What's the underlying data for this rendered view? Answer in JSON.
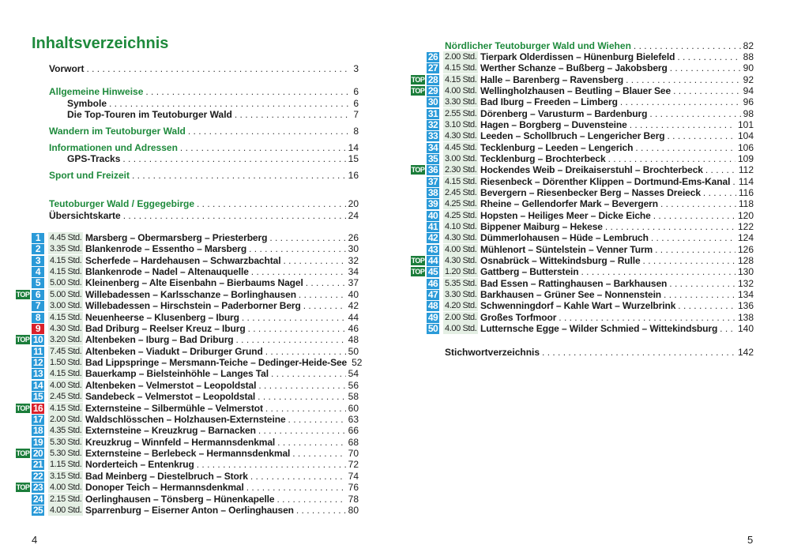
{
  "colors": {
    "accent_green": "#1e8a3c",
    "badge_blue": "#2a9ad8",
    "badge_red": "#d9202a",
    "top_green": "#1b7d3a",
    "duration_bg": "#e4efe4"
  },
  "left": {
    "title": "Inhaltsverzeichnis",
    "page_number": "4",
    "front_matter": [
      {
        "label": "Vorwort",
        "page": "3",
        "green": false,
        "indent": false
      },
      {
        "label": "Allgemeine Hinweise",
        "page": "6",
        "green": true,
        "indent": false
      },
      {
        "label": "Symbole",
        "page": "6",
        "green": false,
        "indent": true
      },
      {
        "label": "Die Top-Touren im Teutoburger Wald",
        "page": "7",
        "green": false,
        "indent": true
      },
      {
        "label": "Wandern im Teutoburger Wald",
        "page": "8",
        "green": true,
        "indent": false
      },
      {
        "label": "Informationen und Adressen",
        "page": "14",
        "green": true,
        "indent": false
      },
      {
        "label": "GPS-Tracks",
        "page": "15",
        "green": false,
        "indent": true
      },
      {
        "label": "Sport und Freizeit",
        "page": "16",
        "green": true,
        "indent": false
      },
      {
        "label": "Teutoburger Wald / Eggegebirge",
        "page": "20",
        "green": true,
        "indent": false
      },
      {
        "label": "Übersichtskarte",
        "page": "24",
        "green": false,
        "indent": false
      }
    ],
    "tours": [
      {
        "num": "1",
        "duration": "4.45 Std.",
        "title": "Marsberg – Obermarsberg – Priesterberg",
        "page": "26",
        "top": false,
        "red": false
      },
      {
        "num": "2",
        "duration": "3.35 Std.",
        "title": "Blankenrode – Essentho – Marsberg",
        "page": "30",
        "top": false,
        "red": false
      },
      {
        "num": "3",
        "duration": "4.15 Std.",
        "title": "Scherfede – Hardehausen – Schwarzbachtal",
        "page": "32",
        "top": false,
        "red": false
      },
      {
        "num": "4",
        "duration": "4.15 Std.",
        "title": "Blankenrode – Nadel – Altenauquelle",
        "page": "34",
        "top": false,
        "red": false
      },
      {
        "num": "5",
        "duration": "5.00 Std.",
        "title": "Kleinenberg – Alte Eisenbahn – Bierbaums Nagel",
        "page": "37",
        "top": false,
        "red": false
      },
      {
        "num": "6",
        "duration": "5.00 Std.",
        "title": "Willebadessen – Karlsschanze – Borlinghausen",
        "page": "40",
        "top": true,
        "red": false
      },
      {
        "num": "7",
        "duration": "3.00 Std.",
        "title": "Willebadessen – Hirschstein – Paderborner Berg",
        "page": "42",
        "top": false,
        "red": false
      },
      {
        "num": "8",
        "duration": "4.15 Std.",
        "title": "Neuenheerse – Klusenberg – Iburg",
        "page": "44",
        "top": false,
        "red": false
      },
      {
        "num": "9",
        "duration": "4.30 Std.",
        "title": "Bad Driburg – Reelser Kreuz – Iburg",
        "page": "46",
        "top": false,
        "red": true
      },
      {
        "num": "10",
        "duration": "3.20 Std.",
        "title": "Altenbeken – Iburg – Bad Driburg",
        "page": "48",
        "top": true,
        "red": false
      },
      {
        "num": "11",
        "duration": "7.45 Std.",
        "title": "Altenbeken – Viadukt – Driburger Grund",
        "page": "50",
        "top": false,
        "red": false
      },
      {
        "num": "12",
        "duration": "1.50 Std.",
        "title": "Bad Lippspringe – Mersmann-Teiche – Dedinger-Heide-See",
        "page": "52",
        "top": false,
        "red": false
      },
      {
        "num": "13",
        "duration": "4.15 Std.",
        "title": "Bauerkamp – Bielsteinhöhle – Langes Tal",
        "page": "54",
        "top": false,
        "red": false
      },
      {
        "num": "14",
        "duration": "4.00 Std.",
        "title": "Altenbeken – Velmerstot – Leopoldstal",
        "page": "56",
        "top": false,
        "red": false
      },
      {
        "num": "15",
        "duration": "2.45 Std.",
        "title": "Sandebeck – Velmerstot – Leopoldstal",
        "page": "58",
        "top": false,
        "red": false
      },
      {
        "num": "16",
        "duration": "4.15 Std.",
        "title": "Externsteine – Silbermühle – Velmerstot",
        "page": "60",
        "top": true,
        "red": true
      },
      {
        "num": "17",
        "duration": "2.00 Std.",
        "title": "Waldschlösschen – Holzhausen-Externsteine",
        "page": "63",
        "top": false,
        "red": false
      },
      {
        "num": "18",
        "duration": "4.35 Std.",
        "title": "Externsteine – Kreuzkrug – Barnacken",
        "page": "66",
        "top": false,
        "red": false
      },
      {
        "num": "19",
        "duration": "5.30 Std.",
        "title": "Kreuzkrug – Winnfeld – Hermannsdenkmal",
        "page": "68",
        "top": false,
        "red": false
      },
      {
        "num": "20",
        "duration": "5.30 Std.",
        "title": "Externsteine – Berlebeck – Hermannsdenkmal",
        "page": "70",
        "top": true,
        "red": false
      },
      {
        "num": "21",
        "duration": "1.15 Std.",
        "title": "Norderteich – Entenkrug",
        "page": "72",
        "top": false,
        "red": false
      },
      {
        "num": "22",
        "duration": "3.15 Std.",
        "title": "Bad Meinberg – Diestelbruch – Stork",
        "page": "74",
        "top": false,
        "red": false
      },
      {
        "num": "23",
        "duration": "4.00 Std.",
        "title": "Donoper Teich – Hermannsdenkmal",
        "page": "76",
        "top": true,
        "red": false
      },
      {
        "num": "24",
        "duration": "2.15 Std.",
        "title": "Oerlinghausen – Tönsberg – Hünenkapelle",
        "page": "78",
        "top": false,
        "red": false
      },
      {
        "num": "25",
        "duration": "4.00 Std.",
        "title": "Sparrenburg – Eiserner Anton – Oerlinghausen",
        "page": "80",
        "top": false,
        "red": false
      }
    ]
  },
  "right": {
    "page_number": "5",
    "section": {
      "label": "Nördlicher Teutoburger Wald und Wiehen",
      "page": "82"
    },
    "tours": [
      {
        "num": "26",
        "duration": "2.00 Std.",
        "title": "Tierpark Olderdissen – Hünenburg Bielefeld",
        "page": "88",
        "top": false,
        "red": false
      },
      {
        "num": "27",
        "duration": "4.15 Std.",
        "title": "Werther Schanze – Bußberg – Jakobsberg",
        "page": "90",
        "top": false,
        "red": false
      },
      {
        "num": "28",
        "duration": "4.15 Std.",
        "title": "Halle – Barenberg – Ravensberg",
        "page": "92",
        "top": true,
        "red": false
      },
      {
        "num": "29",
        "duration": "4.00 Std.",
        "title": "Wellingholzhausen – Beutling – Blauer See",
        "page": "94",
        "top": true,
        "red": false
      },
      {
        "num": "30",
        "duration": "3.30 Std.",
        "title": "Bad Iburg – Freeden – Limberg",
        "page": "96",
        "top": false,
        "red": false
      },
      {
        "num": "31",
        "duration": "2.55 Std.",
        "title": "Dörenberg – Varusturm – Bardenburg",
        "page": "98",
        "top": false,
        "red": false
      },
      {
        "num": "32",
        "duration": "3.10 Std.",
        "title": "Hagen – Borgberg – Duvensteine",
        "page": "101",
        "top": false,
        "red": false
      },
      {
        "num": "33",
        "duration": "4.30 Std.",
        "title": "Leeden – Schollbruch – Lengericher Berg",
        "page": "104",
        "top": false,
        "red": false
      },
      {
        "num": "34",
        "duration": "4.45 Std.",
        "title": "Tecklenburg – Leeden – Lengerich",
        "page": "106",
        "top": false,
        "red": false
      },
      {
        "num": "35",
        "duration": "3.00 Std.",
        "title": "Tecklenburg – Brochterbeck",
        "page": "109",
        "top": false,
        "red": false
      },
      {
        "num": "36",
        "duration": "2.30 Std.",
        "title": "Hockendes Weib – Dreikaiserstuhl – Brochterbeck",
        "page": "112",
        "top": true,
        "red": false
      },
      {
        "num": "37",
        "duration": "4.15 Std.",
        "title": "Riesenbeck – Dörenther Klippen – Dortmund-Ems-Kanal",
        "page": "114",
        "top": false,
        "red": false
      },
      {
        "num": "38",
        "duration": "2.45 Std.",
        "title": "Bevergern – Riesenbecker Berg – Nasses Dreieck",
        "page": "116",
        "top": false,
        "red": false
      },
      {
        "num": "39",
        "duration": "4.25 Std.",
        "title": "Rheine – Gellendorfer Mark – Bevergern",
        "page": "118",
        "top": false,
        "red": false
      },
      {
        "num": "40",
        "duration": "4.25 Std.",
        "title": "Hopsten – Heiliges Meer – Dicke Eiche",
        "page": "120",
        "top": false,
        "red": false
      },
      {
        "num": "41",
        "duration": "4.10 Std.",
        "title": "Bippener Maiburg – Hekese",
        "page": "122",
        "top": false,
        "red": false
      },
      {
        "num": "42",
        "duration": "4.30 Std.",
        "title": "Dümmerlohausen – Hüde – Lembruch",
        "page": "124",
        "top": false,
        "red": false
      },
      {
        "num": "43",
        "duration": "4.00 Std.",
        "title": "Mühlenort – Süntelstein – Venner Turm",
        "page": "126",
        "top": false,
        "red": false
      },
      {
        "num": "44",
        "duration": "4.30 Std.",
        "title": "Osnabrück – Wittekindsburg – Rulle",
        "page": "128",
        "top": true,
        "red": false
      },
      {
        "num": "45",
        "duration": "1.20 Std.",
        "title": "Gattberg – Butterstein",
        "page": "130",
        "top": true,
        "red": false
      },
      {
        "num": "46",
        "duration": "5.35 Std.",
        "title": "Bad Essen – Rattinghausen – Barkhausen",
        "page": "132",
        "top": false,
        "red": false
      },
      {
        "num": "47",
        "duration": "3.30 Std.",
        "title": "Barkhausen – Grüner See – Nonnenstein",
        "page": "134",
        "top": false,
        "red": false
      },
      {
        "num": "48",
        "duration": "4.20 Std.",
        "title": "Schwenningdorf – Kahle Wart – Wurzelbrink",
        "page": "136",
        "top": false,
        "red": false
      },
      {
        "num": "49",
        "duration": "2.00 Std.",
        "title": "Großes Torfmoor",
        "page": "138",
        "top": false,
        "red": false
      },
      {
        "num": "50",
        "duration": "4.00 Std.",
        "title": "Lutternsche Egge – Wilder Schmied – Wittekindsburg",
        "page": "140",
        "top": false,
        "red": false
      }
    ],
    "index": {
      "label": "Stichwortverzeichnis",
      "page": "142"
    },
    "top_label": "TOP"
  }
}
